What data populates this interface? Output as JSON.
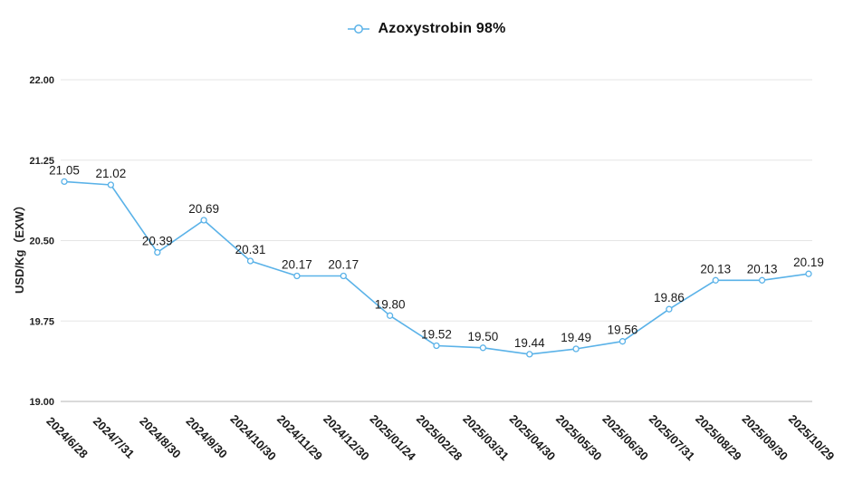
{
  "legend": {
    "label": "Azoxystrobin 98%"
  },
  "chart_data": {
    "type": "line",
    "title": "Azoxystrobin 98%",
    "ylabel": "USD/Kg（EXW）",
    "xlabel": "",
    "categories": [
      "2024/6/28",
      "2024/7/31",
      "2024/8/30",
      "2024/9/30",
      "2024/10/30",
      "2024/11/29",
      "2024/12/30",
      "2025/01/24",
      "2025/02/28",
      "2025/03/31",
      "2025/04/30",
      "2025/05/30",
      "2025/06/30",
      "2025/07/31",
      "2025/08/29",
      "2025/09/30",
      "2025/10/29"
    ],
    "series": [
      {
        "name": "Azoxystrobin 98%",
        "values": [
          21.05,
          21.02,
          20.39,
          20.69,
          20.31,
          20.17,
          20.17,
          19.8,
          19.52,
          19.5,
          19.44,
          19.49,
          19.56,
          19.86,
          20.13,
          20.13,
          20.19
        ]
      }
    ],
    "ylim": [
      19.0,
      22.0
    ],
    "yticks": [
      22.0,
      21.25,
      20.5,
      19.75,
      19.0
    ],
    "grid": true,
    "legend_position": "top-center",
    "marker": "empty-circle",
    "x_label_rotation": 45,
    "colors": {
      "line": "#5ab2e8",
      "grid": "#e5e5e5",
      "axis_line": "#b5b5b5",
      "data_label": "#1a1a1a",
      "tick_label": "#222222",
      "legend_text": "#111111"
    }
  }
}
